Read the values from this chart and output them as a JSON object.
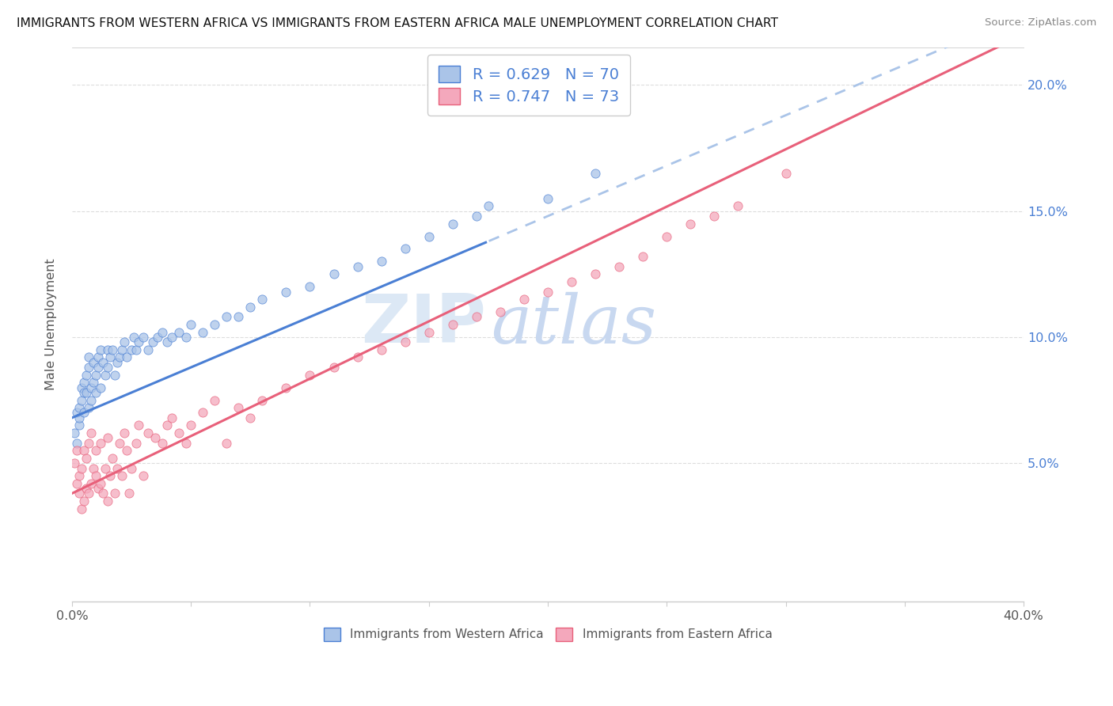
{
  "title": "IMMIGRANTS FROM WESTERN AFRICA VS IMMIGRANTS FROM EASTERN AFRICA MALE UNEMPLOYMENT CORRELATION CHART",
  "source": "Source: ZipAtlas.com",
  "ylabel": "Male Unemployment",
  "xlim": [
    0.0,
    0.4
  ],
  "ylim": [
    -0.005,
    0.215
  ],
  "western_R": 0.629,
  "western_N": 70,
  "eastern_R": 0.747,
  "eastern_N": 73,
  "western_color": "#aac4e8",
  "eastern_color": "#f4a8bc",
  "western_line_color": "#4a7fd4",
  "eastern_line_color": "#e8607a",
  "trend_line_dashed_color": "#aac4e8",
  "watermark_zip_color": "#dce8f5",
  "watermark_atlas_color": "#c8d8f0",
  "legend_text_color": "#4a7fd4",
  "western_line_intercept": 0.068,
  "western_line_slope": 0.4,
  "eastern_line_intercept": 0.038,
  "eastern_line_slope": 0.455,
  "western_line_solid_end": 0.175,
  "xtick_positions": [
    0.0,
    0.05,
    0.1,
    0.15,
    0.2,
    0.25,
    0.3,
    0.35,
    0.4
  ],
  "ytick_positions": [
    0.05,
    0.1,
    0.15,
    0.2
  ],
  "grid_color": "#dddddd",
  "spine_color": "#cccccc"
}
